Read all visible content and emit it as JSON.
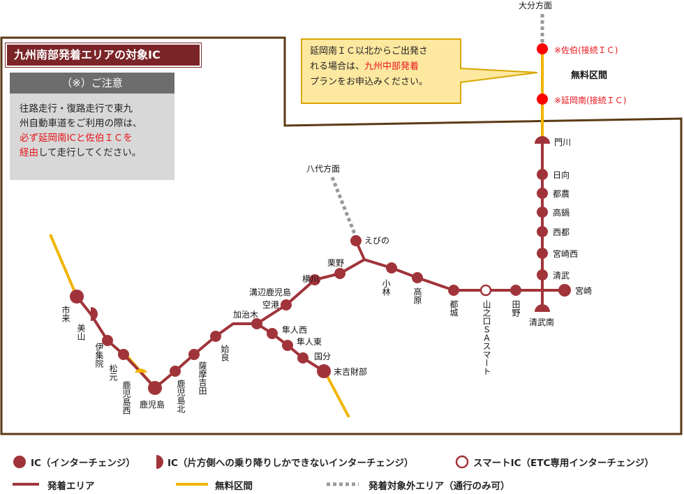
{
  "title": "九州南部発着エリアの対象IC",
  "note": {
    "heading": "（※）ご注意",
    "line1": "往路走行・復路走行で東九",
    "line2": "州自動車道をご利用の際は、",
    "red_line1": "必ず延岡南ICと佐伯ＩＣを",
    "red_line2": "経由",
    "tail": "して走行してください。"
  },
  "callout": {
    "line1": "延岡南ＩＣ以北からご出発さ",
    "line2a": "れる場合は、",
    "line2b": "九州中部発着",
    "line3": "プランをお申込みください。"
  },
  "directions": {
    "oita": "大分方面",
    "yatsushiro": "八代方面"
  },
  "free_zone_label": "無料区間",
  "special_ics": {
    "saiki": "※佐伯(接続ＩＣ)",
    "nobeoka": "※延岡南(接続ＩＣ)"
  },
  "ics": {
    "kadogawa": "門川",
    "hyuga": "日向",
    "tsuno": "都農",
    "takanabe": "高鍋",
    "saito": "西都",
    "miyazakinishi": "宮崎西",
    "kiyotake": "清武",
    "miyazaki": "宮崎",
    "kiyotakeminami": "清武南",
    "tano": "田野",
    "yamanokuchi": "山之口ＳＡスマート",
    "miyakonojo": "都城",
    "takaharu": "高原",
    "kobayashi": "小林",
    "ebino": "えびの",
    "kurino": "栗野",
    "yokogawa": "横川",
    "mizobe": "溝辺鹿児島",
    "kuko": "空港",
    "kajiki": "加治木",
    "hayatonishi": "隼人西",
    "hayatohigashi": "隼人東",
    "kokubu": "国分",
    "sueyoshi": "末吉財部",
    "aira": "姶良",
    "satsumayoshida": "薩摩吉田",
    "kagoshimakita": "鹿児島北",
    "kagoshima": "鹿児島",
    "kagoshimanishi": "鹿児島西",
    "matsumoto": "松元",
    "ijuin": "伊集院",
    "miyama": "美山",
    "ichiki": "市来"
  },
  "legend": {
    "ic": "IC（インターチェンジ）",
    "half_ic": "IC（片方側への乗り降りしかできないインターチェンジ）",
    "smart_ic": "スマートIC（ETC専用インターチェンジ）",
    "area": "発着エリア",
    "free": "無料区間",
    "outside": "発着対象外エリア（通行のみ可）"
  },
  "colors": {
    "route": "#a0343a",
    "free": "#f0b400",
    "outside": "#999999",
    "border": "#5a3a14",
    "accent_red": "#e8141b"
  }
}
